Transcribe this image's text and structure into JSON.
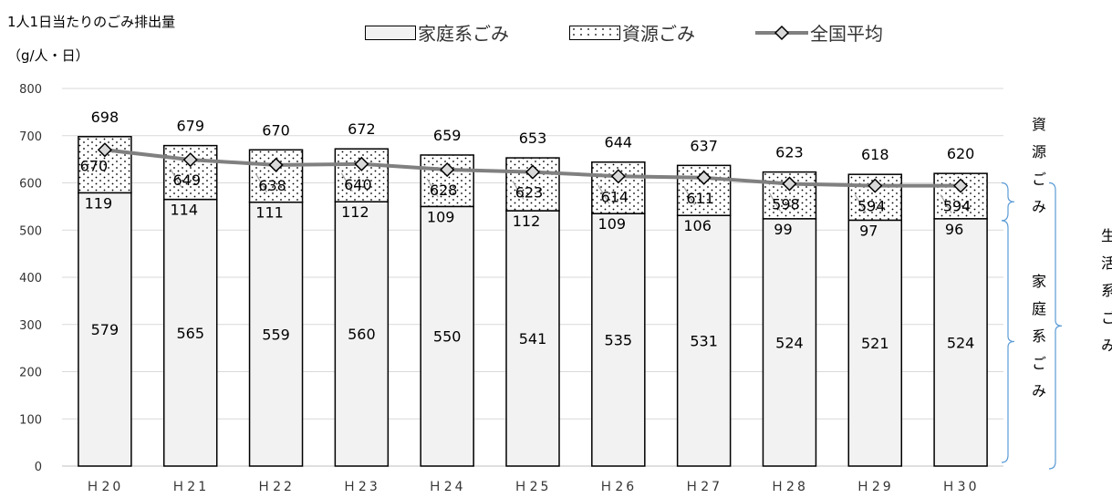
{
  "y_axis_title_line1": "1人1日当たりのごみ排出量",
  "y_axis_title_line2": "（g/人・日）",
  "legend": {
    "household": "家庭系ごみ",
    "resource": "資源ごみ",
    "national": "全国平均"
  },
  "side_labels": {
    "resource": "資源ごみ",
    "household": "家庭系ごみ",
    "living": "生活系ごみ"
  },
  "colors": {
    "household_fill": "#f2f2f2",
    "resource_fill": "#ffffff",
    "national_line": "#808080",
    "marker_fill": "#d9d9d9",
    "bracket": "#5b9bd5",
    "grid": "#d9d9d9"
  },
  "chart_data": {
    "type": "bar",
    "stacked": true,
    "categories": [
      "Ｈ20",
      "Ｈ21",
      "Ｈ22",
      "Ｈ23",
      "Ｈ24",
      "Ｈ25",
      "Ｈ26",
      "Ｈ27",
      "Ｈ28",
      "Ｈ29",
      "Ｈ30"
    ],
    "series": [
      {
        "name": "家庭系ごみ",
        "values": [
          579,
          565,
          559,
          560,
          550,
          541,
          535,
          531,
          524,
          521,
          524
        ]
      },
      {
        "name": "資源ごみ",
        "values": [
          119,
          114,
          111,
          112,
          109,
          112,
          109,
          106,
          99,
          97,
          96
        ]
      },
      {
        "name": "全国平均",
        "type": "line",
        "values": [
          670,
          649,
          638,
          640,
          628,
          623,
          614,
          611,
          598,
          594,
          594
        ]
      }
    ],
    "totals": [
      698,
      679,
      670,
      672,
      659,
      653,
      644,
      637,
      623,
      618,
      620
    ],
    "ylim": [
      0,
      800
    ],
    "yticks": [
      0,
      100,
      200,
      300,
      400,
      500,
      600,
      700,
      800
    ],
    "grid": true,
    "legend_position": "top"
  }
}
